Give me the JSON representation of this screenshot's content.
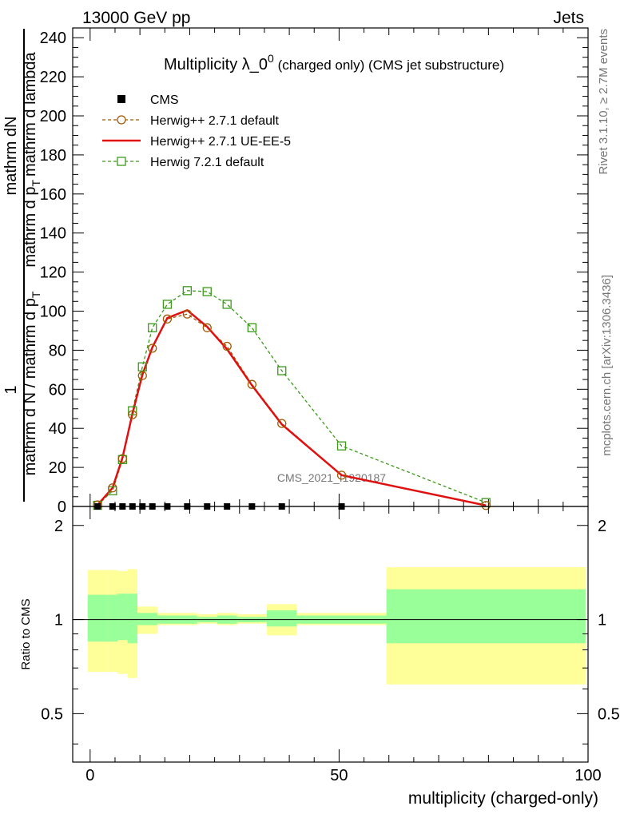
{
  "header": {
    "left": "13000 GeV pp",
    "right": "Jets"
  },
  "side": {
    "rivet": "Rivet 3.1.10, ≥ 2.7M events",
    "mcplots": "mcplots.cern.ch [arXiv:1306.3436]"
  },
  "chart_data": {
    "type": "line",
    "title_main": "Multiplicity λ_0",
    "title_sup": "0",
    "title_rest": " (charged only) (CMS jet substructure)",
    "watermark": "CMS_2021_I1920187",
    "ylabel_top": "mathrm dN",
    "ylabel_mid": "mathrm d p",
    "ylabel_mid_sub": "T",
    "ylabel_mid_rest": "mathrm d lambda",
    "ylabel_numer": "1",
    "ylabel_bottom": "mathrm d N / mathrm d p",
    "ylabel_bottom_sub": "T",
    "xlabel": "multiplicity (charged-only)",
    "ratio_ylabel": "Ratio to CMS",
    "xlim": [
      -3.5,
      100
    ],
    "ylim": [
      0,
      245
    ],
    "ratio_ylim": [
      0.35,
      2.3
    ],
    "xticks": [
      "0",
      "50",
      "100"
    ],
    "yticks": [
      "0",
      "20",
      "40",
      "60",
      "80",
      "100",
      "120",
      "140",
      "160",
      "180",
      "200",
      "220",
      "240"
    ],
    "ratio_yticks": [
      "0.5",
      "1",
      "2"
    ],
    "legend": [
      "CMS",
      "Herwig++ 2.7.1 default",
      "Herwig++ 2.7.1 UE-EE-5",
      "Herwig 7.2.1 default"
    ],
    "cms": {
      "x": [
        1.5,
        4.5,
        6.5,
        8.5,
        10.5,
        12.5,
        15.5,
        19.5,
        23.5,
        27.5,
        32.5,
        38.5,
        50.5
      ],
      "y": [
        0,
        0,
        0,
        0,
        0,
        0,
        0,
        0,
        0,
        0,
        0,
        0,
        0
      ]
    },
    "series": [
      {
        "name": "Herwig++ 2.7.1 default",
        "color": "#a05a00",
        "x": [
          1.5,
          4.5,
          6.5,
          8.5,
          10.5,
          12.5,
          15.5,
          19.5,
          23.5,
          27.5,
          32.5,
          38.5,
          50.5,
          79.5
        ],
        "y": [
          0.8,
          9.5,
          24.5,
          47,
          67,
          81,
          96,
          98.5,
          91.5,
          82,
          62.5,
          42.5,
          16,
          0.5
        ]
      },
      {
        "name": "Herwig++ 2.7.1 UE-EE-5",
        "color": "#e01010",
        "x": [
          1.5,
          4.5,
          6.5,
          8.5,
          10.5,
          12.5,
          15.5,
          19.5,
          23.5,
          27.5,
          32.5,
          38.5,
          50.5,
          79.5
        ],
        "y": [
          0.8,
          9.5,
          25,
          47.5,
          67.5,
          81.5,
          96.5,
          100.5,
          92,
          80.5,
          62,
          42,
          16,
          0.5
        ]
      },
      {
        "name": "Herwig 7.2.1 default",
        "color": "#3a9a1a",
        "x": [
          1.5,
          4.5,
          6.5,
          8.5,
          10.5,
          12.5,
          15.5,
          19.5,
          23.5,
          27.5,
          32.5,
          38.5,
          50.5,
          79.5
        ],
        "y": [
          0.6,
          8,
          24,
          49,
          71.5,
          91.5,
          103.5,
          110.5,
          110,
          103.5,
          91.5,
          69.5,
          31,
          2
        ]
      }
    ],
    "ratio_bands": [
      {
        "x0": -0.5,
        "x1": 3.5,
        "stat": [
          0.85,
          1.2
        ],
        "tot": [
          0.68,
          1.44
        ]
      },
      {
        "x0": 3.5,
        "x1": 5.5,
        "stat": [
          0.85,
          1.2
        ],
        "tot": [
          0.68,
          1.44
        ]
      },
      {
        "x0": 5.5,
        "x1": 7.5,
        "stat": [
          0.86,
          1.21
        ],
        "tot": [
          0.67,
          1.43
        ]
      },
      {
        "x0": 7.5,
        "x1": 9.5,
        "stat": [
          0.84,
          1.21
        ],
        "tot": [
          0.65,
          1.45
        ]
      },
      {
        "x0": 9.5,
        "x1": 11.5,
        "stat": [
          0.96,
          1.05
        ],
        "tot": [
          0.9,
          1.1
        ]
      },
      {
        "x0": 11.5,
        "x1": 13.5,
        "stat": [
          0.96,
          1.05
        ],
        "tot": [
          0.9,
          1.1
        ]
      },
      {
        "x0": 13.5,
        "x1": 17.5,
        "stat": [
          0.97,
          1.03
        ],
        "tot": [
          0.96,
          1.05
        ]
      },
      {
        "x0": 17.5,
        "x1": 21.5,
        "stat": [
          0.97,
          1.03
        ],
        "tot": [
          0.96,
          1.05
        ]
      },
      {
        "x0": 21.5,
        "x1": 25.5,
        "stat": [
          0.98,
          1.02
        ],
        "tot": [
          0.97,
          1.04
        ]
      },
      {
        "x0": 25.5,
        "x1": 29.5,
        "stat": [
          0.97,
          1.03
        ],
        "tot": [
          0.96,
          1.05
        ]
      },
      {
        "x0": 29.5,
        "x1": 35.5,
        "stat": [
          0.98,
          1.02
        ],
        "tot": [
          0.97,
          1.04
        ]
      },
      {
        "x0": 35.5,
        "x1": 41.5,
        "stat": [
          0.95,
          1.07
        ],
        "tot": [
          0.89,
          1.12
        ]
      },
      {
        "x0": 41.5,
        "x1": 59.5,
        "stat": [
          0.97,
          1.03
        ],
        "tot": [
          0.96,
          1.05
        ]
      },
      {
        "x0": 59.5,
        "x1": 99.5,
        "stat": [
          0.84,
          1.25
        ],
        "tot": [
          0.62,
          1.47
        ]
      }
    ],
    "colors": {
      "stat_band": "#99ff99",
      "total_band": "#ffff99",
      "cms": "#000000",
      "watermark": "#888888"
    }
  }
}
